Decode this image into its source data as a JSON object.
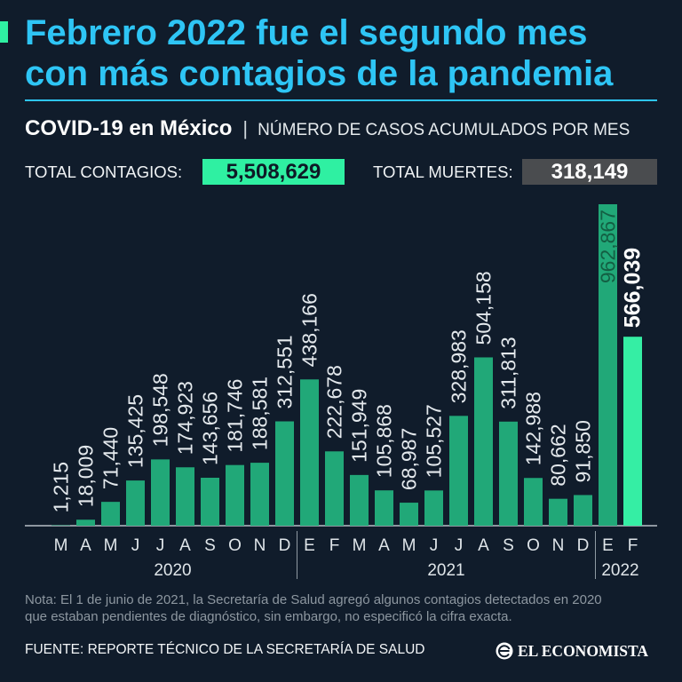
{
  "colors": {
    "background": "#101c2b",
    "title": "#2ec5f5",
    "accent_green": "#2ff0a2",
    "muertes_box": "#4a4c4f",
    "bar": "#21a878",
    "bar_highlight": "#35eea4",
    "bar_label_inside": "#135f43"
  },
  "title": {
    "lines": [
      "Febrero 2022 fue el segundo mes",
      "con más contagios de la pandemia"
    ]
  },
  "subtitle": {
    "topic": "COVID-19 en México",
    "separator": "|",
    "description": "NÚMERO DE CASOS ACUMULADOS POR MES"
  },
  "totals": {
    "contagios": {
      "label": "TOTAL CONTAGIOS:",
      "value": "5,508,629"
    },
    "muertes": {
      "label": "TOTAL MUERTES:",
      "value": "318,149"
    }
  },
  "chart_data": {
    "type": "bar",
    "categories": [
      "M",
      "A",
      "M",
      "J",
      "J",
      "A",
      "S",
      "O",
      "N",
      "D",
      "E",
      "F",
      "M",
      "A",
      "M",
      "J",
      "J",
      "A",
      "S",
      "O",
      "N",
      "D",
      "E",
      "F"
    ],
    "years": [
      "2020",
      "2020",
      "2020",
      "2020",
      "2020",
      "2020",
      "2020",
      "2020",
      "2020",
      "2020",
      "2021",
      "2021",
      "2021",
      "2021",
      "2021",
      "2021",
      "2021",
      "2021",
      "2021",
      "2021",
      "2021",
      "2021",
      "2022",
      "2022"
    ],
    "values": [
      1215,
      18009,
      71440,
      135425,
      198548,
      174923,
      143656,
      181746,
      188581,
      312551,
      438166,
      222678,
      151949,
      105868,
      68987,
      105527,
      328983,
      504158,
      311813,
      142988,
      80662,
      91850,
      962867,
      566039
    ],
    "highlight_index": 23,
    "grid": false
  },
  "note": {
    "lines": [
      "Nota: El 1 de junio de 2021, la Secretaría de Salud agregó algunos contagios detectados en 2020",
      "que estaban pendientes de diagnóstico, sin embargo, no especificó la cifra exacta."
    ]
  },
  "source": "FUENTE: REPORTE TÉCNICO DE LA SECRETARÍA DE SALUD",
  "logo": {
    "text": "EL ECONOMISTA",
    "icon": "el-economista-logo-icon"
  }
}
